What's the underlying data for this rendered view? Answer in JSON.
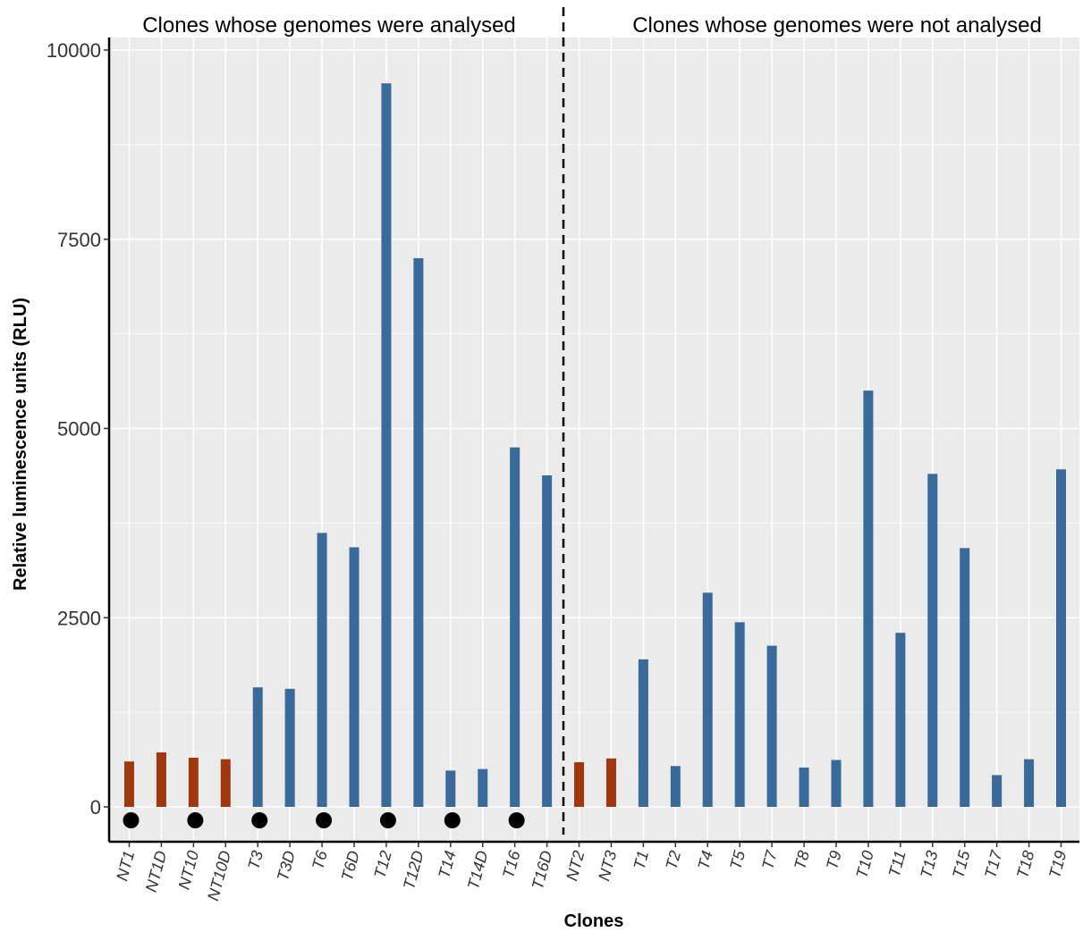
{
  "chart_data": {
    "type": "bar",
    "xlabel": "Clones",
    "ylabel": "Relative luminescence units (RLU)",
    "ylim": [
      -450,
      10100
    ],
    "yticks": [
      0,
      2500,
      5000,
      7500,
      10000
    ],
    "ytick_labels": [
      "0",
      "2500",
      "5000",
      "7500",
      "10000"
    ],
    "grid": true,
    "annotations": {
      "left_title": "Clones whose genomes were analysed",
      "right_title": "Clones whose genomes were not analysed",
      "divider_between": [
        "T16D",
        "NT2"
      ]
    },
    "colors": {
      "NT": "#a0370e",
      "T": "#3a6a9a",
      "background": "#ebebeb",
      "grid": "#ffffff",
      "dot": "#000000"
    },
    "categories": [
      "NT1",
      "NT1D",
      "NT10",
      "NT10D",
      "T3",
      "T3D",
      "T6",
      "T6D",
      "T12",
      "T12D",
      "T14",
      "T14D",
      "T16",
      "T16D",
      "NT2",
      "NT3",
      "T1",
      "T2",
      "T4",
      "T5",
      "T7",
      "T8",
      "T9",
      "T10",
      "T11",
      "T13",
      "T15",
      "T17",
      "T18",
      "T19"
    ],
    "values": [
      600,
      720,
      650,
      630,
      1580,
      1560,
      3620,
      3430,
      9560,
      7250,
      480,
      500,
      4750,
      4380,
      590,
      640,
      1950,
      540,
      2830,
      2440,
      2130,
      520,
      620,
      5500,
      2300,
      4400,
      3420,
      420,
      630,
      4460
    ],
    "groups": [
      "NT",
      "NT",
      "NT",
      "NT",
      "T",
      "T",
      "T",
      "T",
      "T",
      "T",
      "T",
      "T",
      "T",
      "T",
      "NT",
      "NT",
      "T",
      "T",
      "T",
      "T",
      "T",
      "T",
      "T",
      "T",
      "T",
      "T",
      "T",
      "T",
      "T",
      "T"
    ],
    "dot_markers": [
      "NT1",
      "NT10",
      "T3",
      "T6",
      "T12",
      "T14",
      "T16"
    ]
  }
}
